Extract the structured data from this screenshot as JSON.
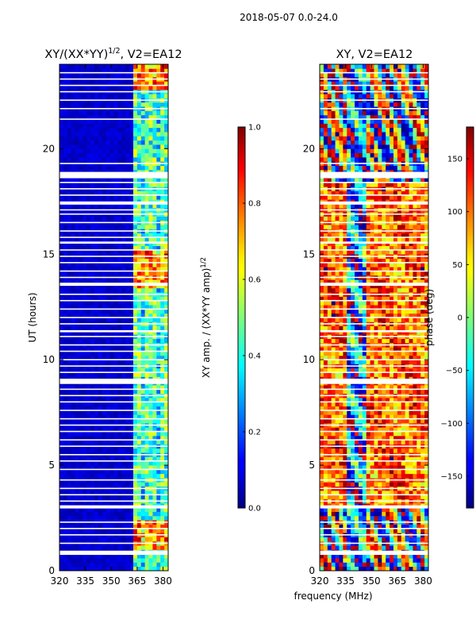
{
  "suptitle": "2018-05-07 0.0-24.0",
  "shared_xlabel": "frequency (MHz)",
  "chart_data": [
    {
      "type": "heatmap",
      "id": "amp",
      "title_main": "XY/(XX*YY)",
      "title_sup": "1/2",
      "title_rest": ", V2=EA12",
      "xlabel": "",
      "ylabel": "UT (hours)",
      "xlim": [
        320,
        383
      ],
      "ylim": [
        0,
        24
      ],
      "xticks": [
        320,
        335,
        350,
        365,
        380
      ],
      "yticks": [
        0,
        5,
        10,
        15,
        20
      ],
      "colorbar": {
        "label_main": "XY amp. / (XX*YY amp)",
        "label_sup": "1/2",
        "range": [
          0.0,
          1.0
        ],
        "ticks": [
          0.0,
          0.2,
          0.4,
          0.6,
          0.8,
          1.0
        ],
        "tick_labels": [
          "0.0",
          "0.2",
          "0.4",
          "0.6",
          "0.8",
          "1.0"
        ]
      },
      "active_band_mhz": [
        363,
        382
      ],
      "hot_time_ranges": [
        [
          0.9,
          2.4
        ],
        [
          13.4,
          15.2
        ],
        [
          22.8,
          24.0
        ]
      ]
    },
    {
      "type": "heatmap",
      "id": "phase",
      "title_main": "XY, V2=EA12",
      "xlabel": "frequency (MHz)",
      "ylabel": "",
      "xlim": [
        320,
        383
      ],
      "ylim": [
        0,
        24
      ],
      "xticks": [
        320,
        335,
        350,
        365,
        380
      ],
      "yticks": [
        0,
        5,
        10,
        15,
        20
      ],
      "colorbar": {
        "label_main": "phase (deg)",
        "range": [
          -180,
          180
        ],
        "ticks": [
          -150,
          -100,
          -50,
          0,
          50,
          100,
          150
        ],
        "tick_labels": [
          "−150",
          "−100",
          "−50",
          "0",
          "50",
          "100",
          "150"
        ]
      }
    }
  ],
  "flagged_gaps_hours": [
    [
      0.75,
      0.95
    ],
    [
      2.95,
      3.1
    ],
    [
      8.85,
      9.1
    ],
    [
      13.5,
      13.65
    ],
    [
      18.6,
      18.9
    ],
    [
      17.35,
      17.5
    ],
    [
      15.5,
      15.6
    ],
    [
      11.3,
      11.4
    ]
  ],
  "flag_lines_hours": [
    1.3,
    1.7,
    2.0,
    2.3,
    3.3,
    3.6,
    3.9,
    4.3,
    4.8,
    5.2,
    5.5,
    5.9,
    6.2,
    6.6,
    6.9,
    7.2,
    7.6,
    8.0,
    8.3,
    8.6,
    9.4,
    9.7,
    10.0,
    10.4,
    10.7,
    11.1,
    11.7,
    12.0,
    12.4,
    12.8,
    13.1,
    13.9,
    14.2,
    14.6,
    14.9,
    15.2,
    15.8,
    16.1,
    16.5,
    16.9,
    17.1,
    17.8,
    18.1,
    18.4,
    19.3,
    21.4,
    21.9,
    22.3,
    22.7,
    23.0,
    23.3,
    23.6
  ]
}
